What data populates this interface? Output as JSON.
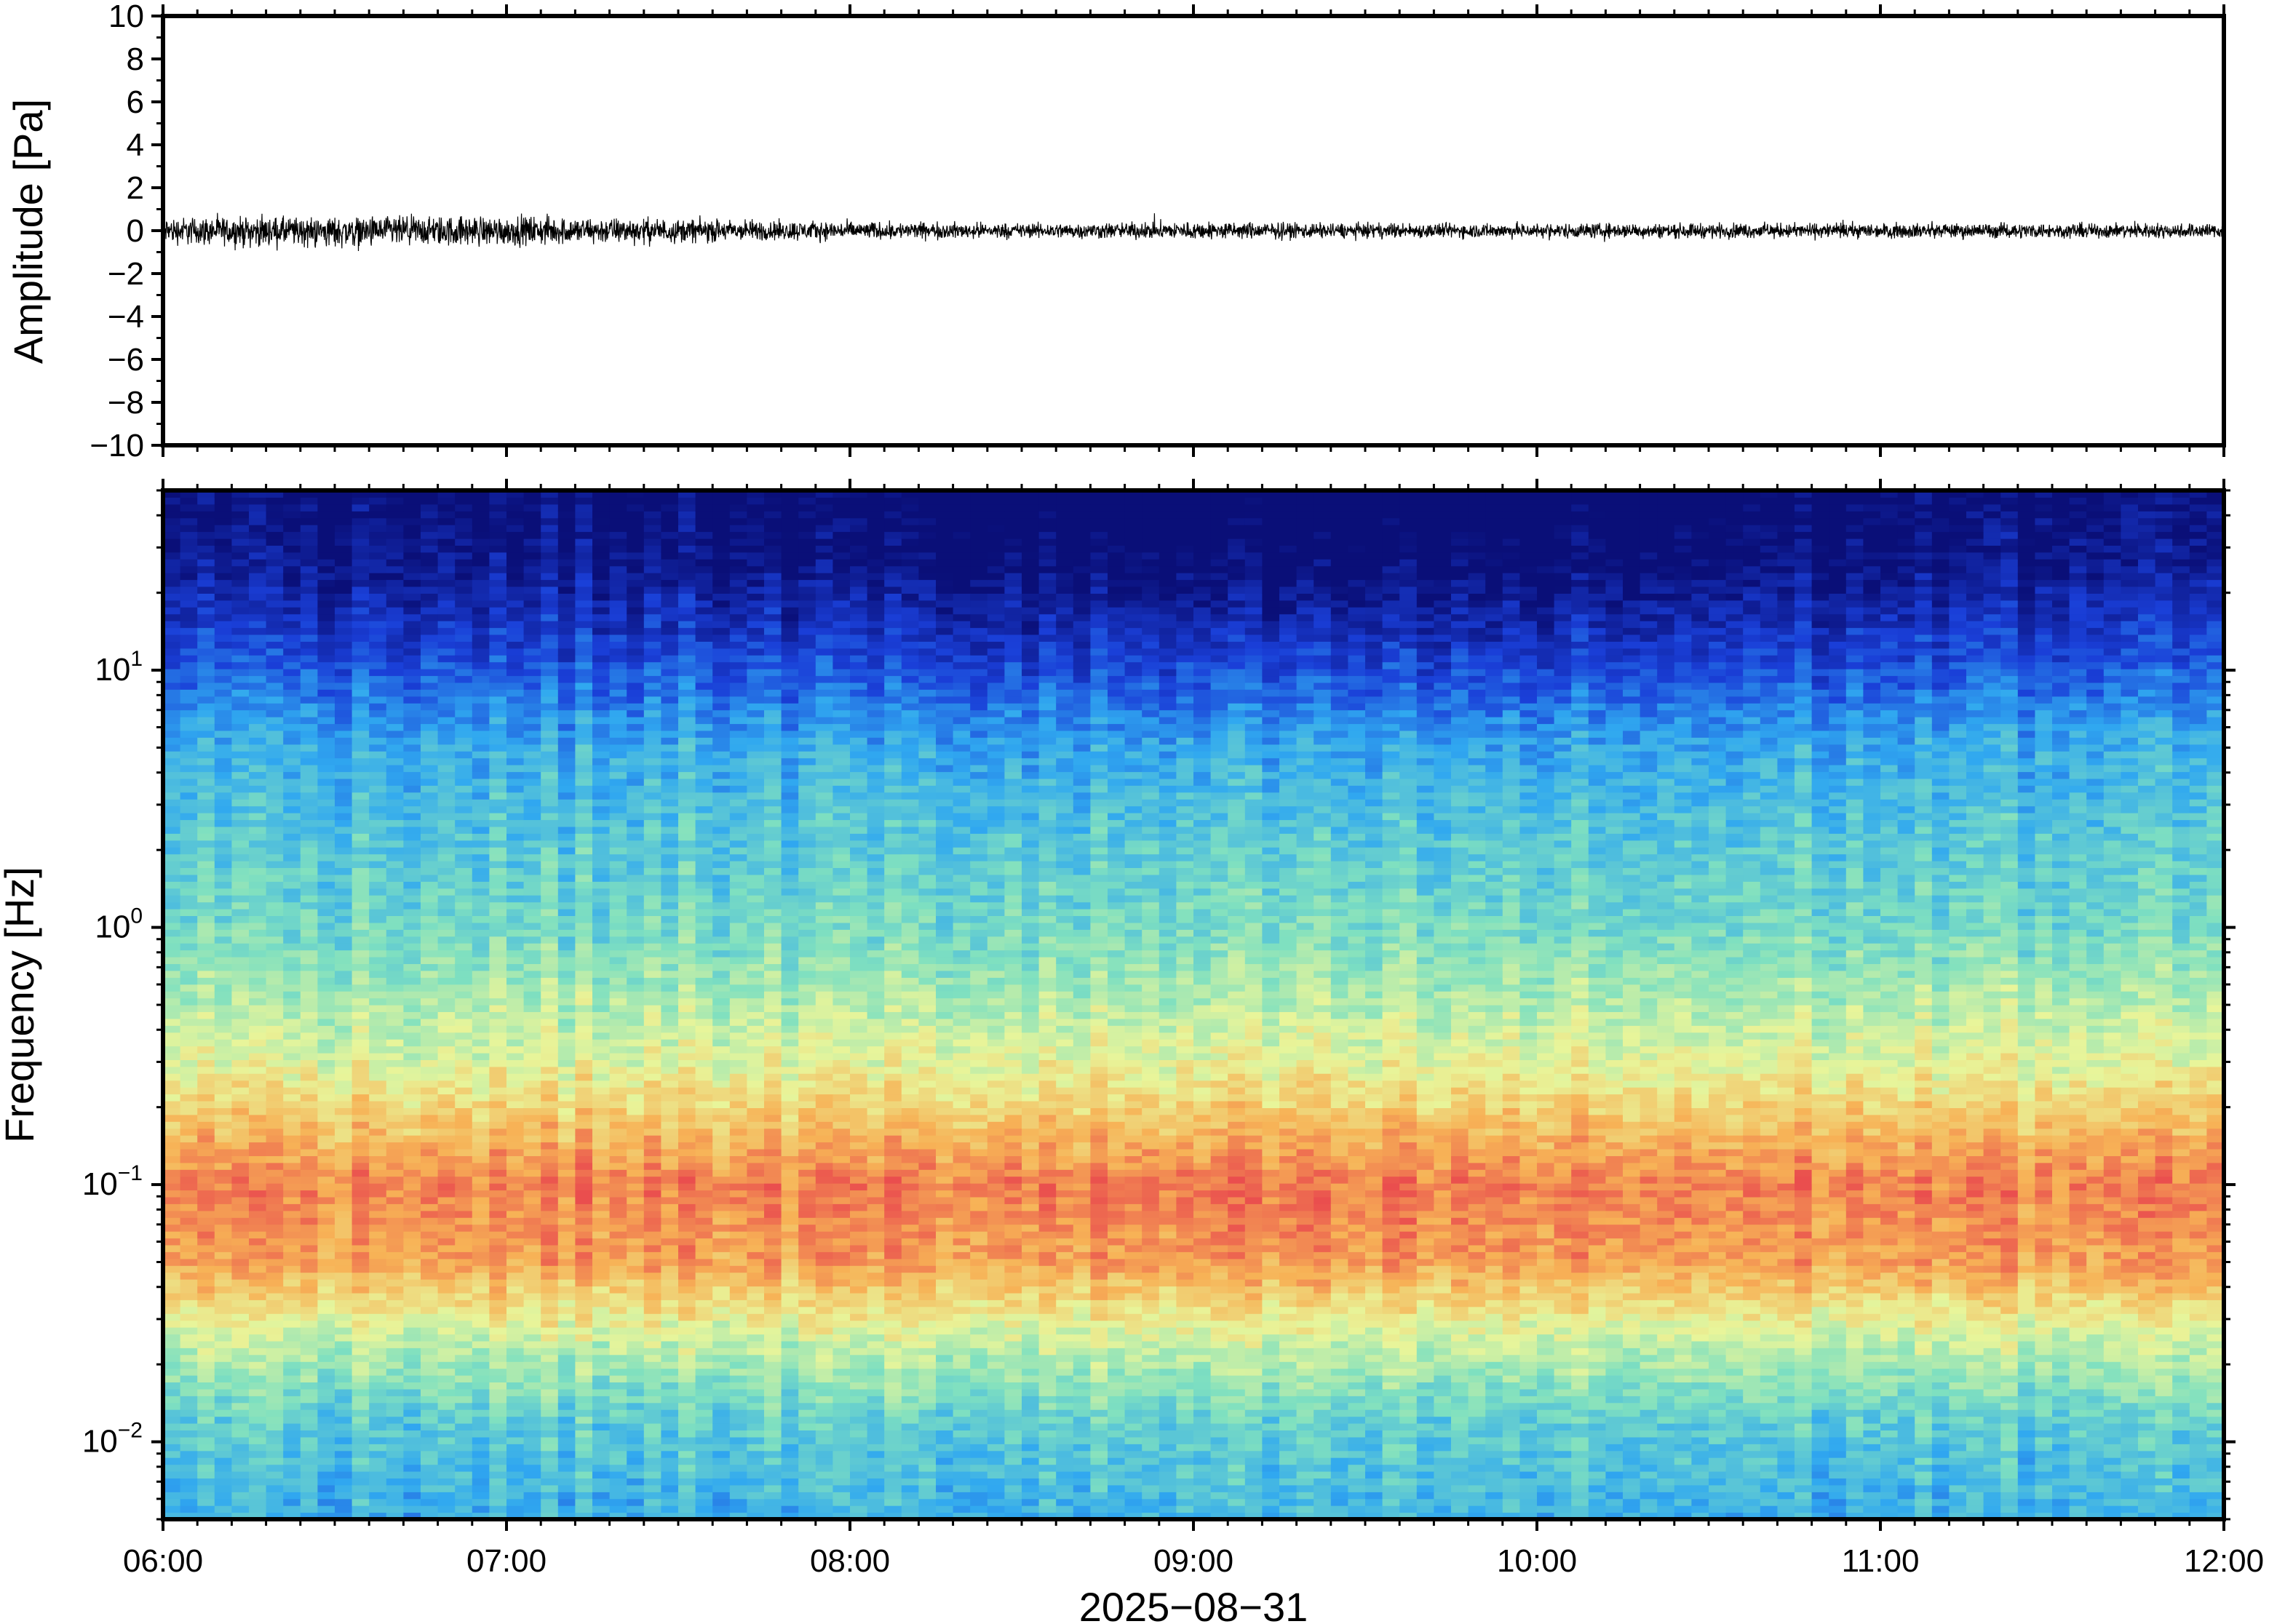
{
  "chart_data": [
    {
      "type": "line",
      "panel": "waveform",
      "ylabel": "Amplitude [Pa]",
      "ylim": [
        -10,
        10
      ],
      "yticks": [
        10,
        8,
        6,
        4,
        2,
        0,
        -2,
        -4,
        -6,
        -8,
        -10
      ],
      "ytick_labels": [
        "10",
        "8",
        "6",
        "4",
        "2",
        "0",
        "−2",
        "−4",
        "−6",
        "−8",
        "−10"
      ],
      "xlim": [
        "06:00",
        "12:00"
      ],
      "series": [
        {
          "color": "#000000",
          "x": [
            "06:00",
            "06:30",
            "07:00",
            "07:30",
            "08:00",
            "08:30",
            "09:00",
            "09:30",
            "10:00",
            "10:30",
            "11:00",
            "11:30",
            "12:00"
          ],
          "envelope_max": [
            0.9,
            0.9,
            1.0,
            0.8,
            0.6,
            0.5,
            0.6,
            0.5,
            0.5,
            0.5,
            0.5,
            0.5,
            0.5
          ],
          "envelope_min": [
            -0.9,
            -1.2,
            -1.0,
            -0.8,
            -0.6,
            -0.5,
            -0.6,
            -0.5,
            -0.5,
            -0.5,
            -0.5,
            -0.5,
            -0.5
          ]
        }
      ]
    },
    {
      "type": "heatmap",
      "panel": "spectrogram",
      "ylabel": "Frequency [Hz]",
      "xlabel": "2025−08−31",
      "yscale": "log",
      "ylim": [
        0.005,
        50
      ],
      "yticks": [
        {
          "base": "10",
          "exp": "1",
          "value": 10
        },
        {
          "base": "10",
          "exp": "0",
          "value": 1
        },
        {
          "base": "10",
          "exp": "−1",
          "value": 0.1
        },
        {
          "base": "10",
          "exp": "−2",
          "value": 0.01
        }
      ],
      "xticks": [
        "06:00",
        "07:00",
        "08:00",
        "09:00",
        "10:00",
        "11:00",
        "12:00"
      ],
      "colormap": "rainbow",
      "colors": [
        "#0a0f78",
        "#1a3fd8",
        "#30a8f0",
        "#7fe0c0",
        "#e8f59a",
        "#f7b256",
        "#ea4e4e"
      ],
      "spectral_profile": [
        {
          "freq": 50,
          "level": 0.0
        },
        {
          "freq": 25,
          "level": 0.05
        },
        {
          "freq": 12,
          "level": 0.18
        },
        {
          "freq": 5,
          "level": 0.36
        },
        {
          "freq": 1,
          "level": 0.48
        },
        {
          "freq": 0.3,
          "level": 0.66
        },
        {
          "freq": 0.1,
          "level": 0.92
        },
        {
          "freq": 0.05,
          "level": 0.86
        },
        {
          "freq": 0.025,
          "level": 0.62
        },
        {
          "freq": 0.012,
          "level": 0.44
        },
        {
          "freq": 0.005,
          "level": 0.36
        }
      ]
    }
  ]
}
